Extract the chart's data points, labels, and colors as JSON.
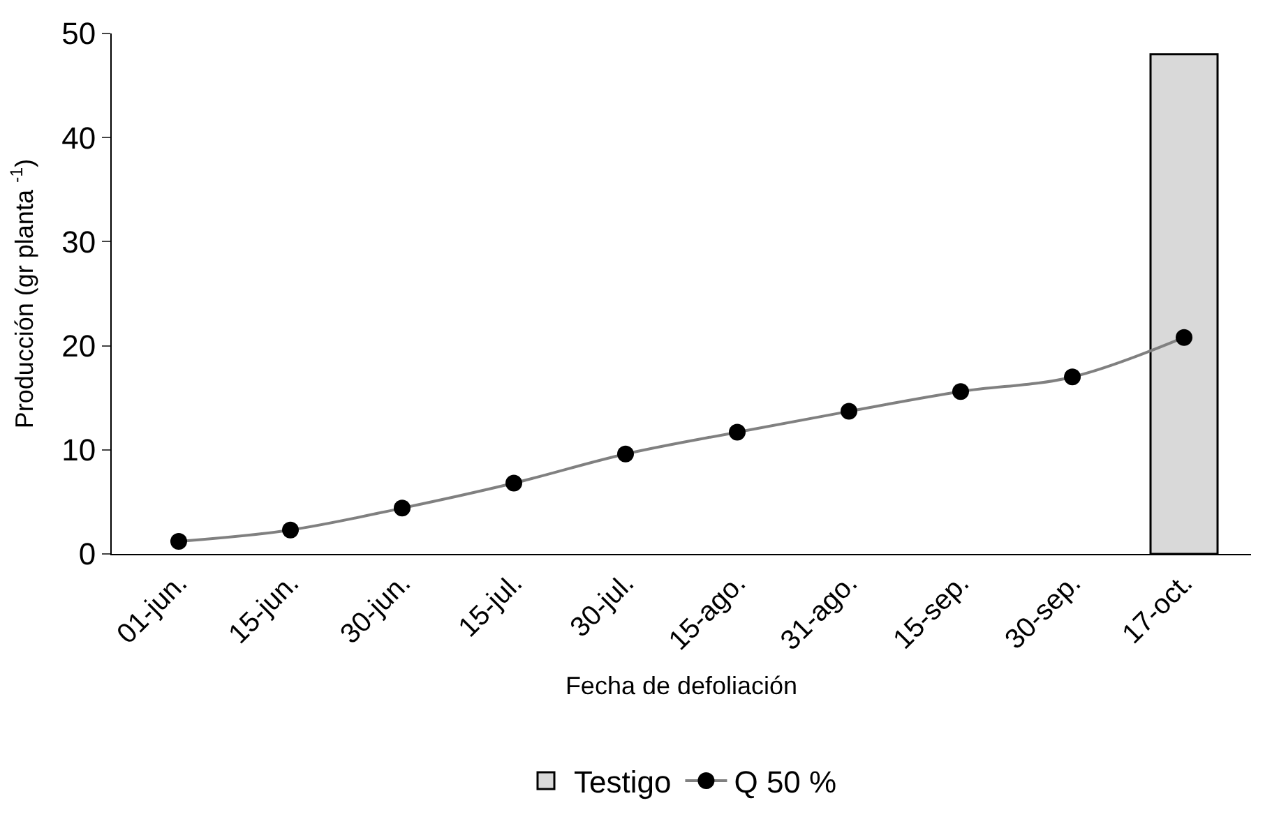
{
  "chart_data": {
    "type": "line",
    "xlabel": "Fecha de defoliación",
    "ylabel": "Producción (gr planta $^{-1}$)",
    "categories": [
      "01-jun.",
      "15-jun.",
      "30-jun.",
      "15-jul.",
      "30-jul.",
      "15-ago.",
      "31-ago.",
      "15-sep.",
      "30-sep.",
      "17-oct."
    ],
    "series": [
      {
        "name": "Testigo",
        "type": "bar",
        "color": "#d9d9d9",
        "values": [
          null,
          null,
          null,
          null,
          null,
          null,
          null,
          null,
          null,
          48
        ]
      },
      {
        "name": "Q 50 %",
        "color": "#808080",
        "values": [
          1.2,
          2.3,
          4.4,
          6.8,
          9.6,
          11.7,
          13.7,
          15.6,
          17.0,
          20.8
        ]
      }
    ],
    "ylim": [
      0,
      50
    ],
    "yticks": [
      0,
      10,
      20,
      30,
      40,
      50
    ],
    "legend": "bottom",
    "marker": "circle"
  }
}
